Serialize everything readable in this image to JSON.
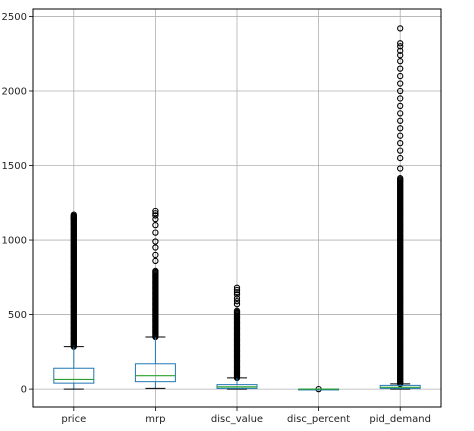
{
  "chart_data": {
    "type": "box",
    "title": "",
    "xlabel": "",
    "ylabel": "",
    "ylim": [
      -120,
      2550
    ],
    "yticks": [
      0,
      500,
      1000,
      1500,
      2000,
      2500
    ],
    "ytick_labels": [
      "0",
      "500",
      "1000",
      "1500",
      "2000",
      "2500"
    ],
    "grid": true,
    "colors": {
      "box": "#1f77b4",
      "median": "#2ca02c",
      "outlier": "#000000",
      "grid": "#b0b0b0",
      "axes": "#000000"
    },
    "categories": [
      "price",
      "mrp",
      "disc_value",
      "disc_percent",
      "pid_demand"
    ],
    "boxes": [
      {
        "name": "price",
        "whisker_low": 0,
        "q1": 40,
        "median": 65,
        "q3": 140,
        "whisker_high": 285,
        "outlier_min": 285,
        "outlier_max": 1170,
        "outliers_sparse": [
          1135,
          1150,
          1160,
          1170
        ]
      },
      {
        "name": "mrp",
        "whisker_low": 5,
        "q1": 50,
        "median": 90,
        "q3": 170,
        "whisker_high": 350,
        "outlier_min": 350,
        "outlier_max": 800,
        "outliers_sparse": [
          860,
          900,
          950,
          990,
          1050,
          1100,
          1140,
          1165,
          1180,
          1195
        ]
      },
      {
        "name": "disc_value",
        "whisker_low": 0,
        "q1": 5,
        "median": 15,
        "q3": 30,
        "whisker_high": 75,
        "outlier_min": 75,
        "outlier_max": 530,
        "outliers_sparse": [
          570,
          590,
          610,
          635,
          650,
          665,
          680
        ]
      },
      {
        "name": "disc_percent",
        "whisker_low": 0,
        "q1": 0,
        "median": 0,
        "q3": 0,
        "whisker_high": 0,
        "outlier_min": 0,
        "outlier_max": 0,
        "outliers_sparse": [
          0
        ]
      },
      {
        "name": "pid_demand",
        "whisker_low": 0,
        "q1": 5,
        "median": 12,
        "q3": 25,
        "whisker_high": 35,
        "outlier_min": 35,
        "outlier_max": 1420,
        "outliers_sparse": [
          1480,
          1550,
          1600,
          1650,
          1700,
          1750,
          1800,
          1850,
          1900,
          1950,
          2000,
          2050,
          2100,
          2150,
          2200,
          2240,
          2270,
          2300,
          2320,
          2420
        ]
      }
    ]
  }
}
